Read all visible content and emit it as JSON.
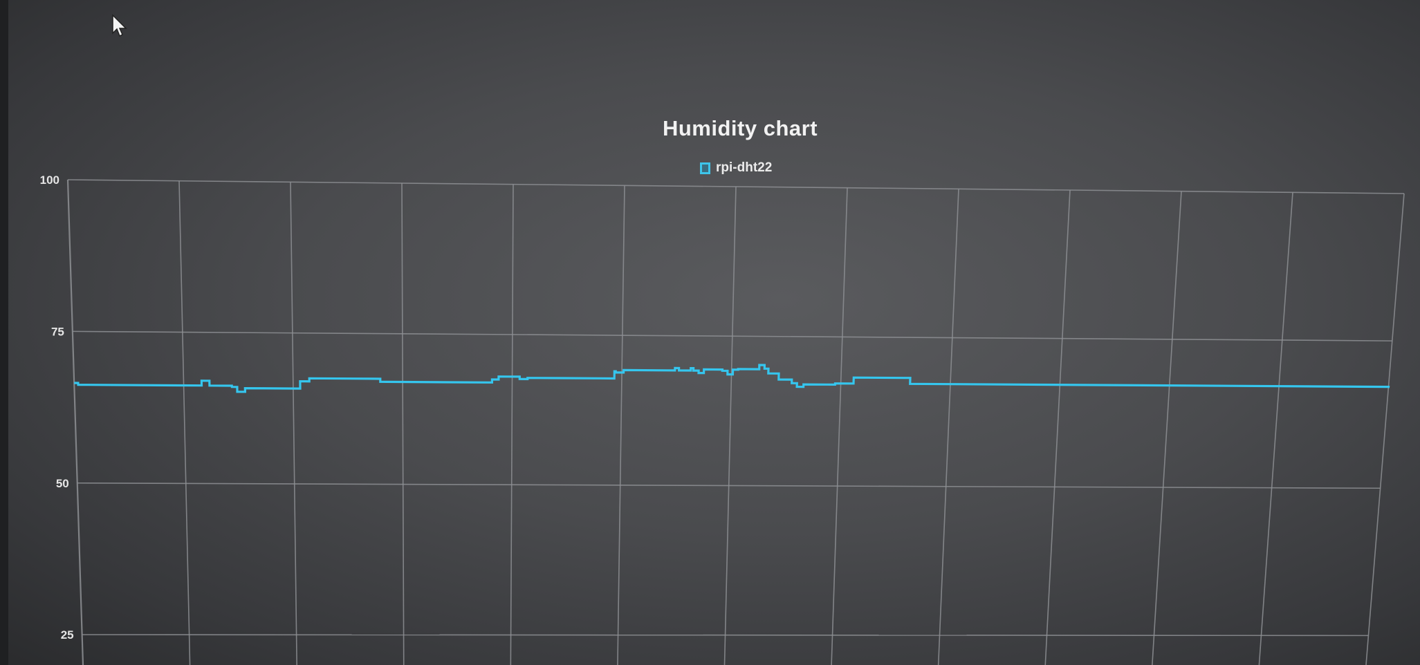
{
  "colors": {
    "series": "#35c6ee",
    "grid": "#8e9094",
    "background": "#4b4c4f"
  },
  "chart_data": {
    "type": "line",
    "title": "Humidity chart",
    "legend_placement": "top-center",
    "grid": true,
    "ylim": [
      25,
      100
    ],
    "yticks": [
      100,
      75,
      50,
      25
    ],
    "x": [
      0,
      3,
      10,
      97,
      100,
      103,
      120,
      124,
      130,
      172,
      176,
      179,
      228,
      233,
      238,
      318,
      323,
      330,
      339,
      345,
      373,
      401,
      411,
      412,
      418,
      451,
      457,
      460,
      469,
      471,
      475,
      479,
      493,
      497,
      501,
      505,
      512,
      521,
      525,
      528,
      536,
      546,
      550,
      555,
      573,
      579,
      593,
      632,
      636,
      1000
    ],
    "values": [
      66.5,
      66.2,
      66.2,
      67,
      67,
      66.2,
      66,
      65.2,
      65.8,
      67,
      67,
      67.5,
      67.5,
      67,
      67,
      67.5,
      68,
      68,
      67.6,
      67.8,
      67.8,
      67.8,
      69,
      68.8,
      69.2,
      69.2,
      69.6,
      69.2,
      69.6,
      69.2,
      68.8,
      69.4,
      69.2,
      68.6,
      69.4,
      69.5,
      69.5,
      70.2,
      69.6,
      68.8,
      67.8,
      67.2,
      66.6,
      67,
      67,
      67.2,
      68.2,
      68.2,
      67.2,
      67
    ]
  }
}
